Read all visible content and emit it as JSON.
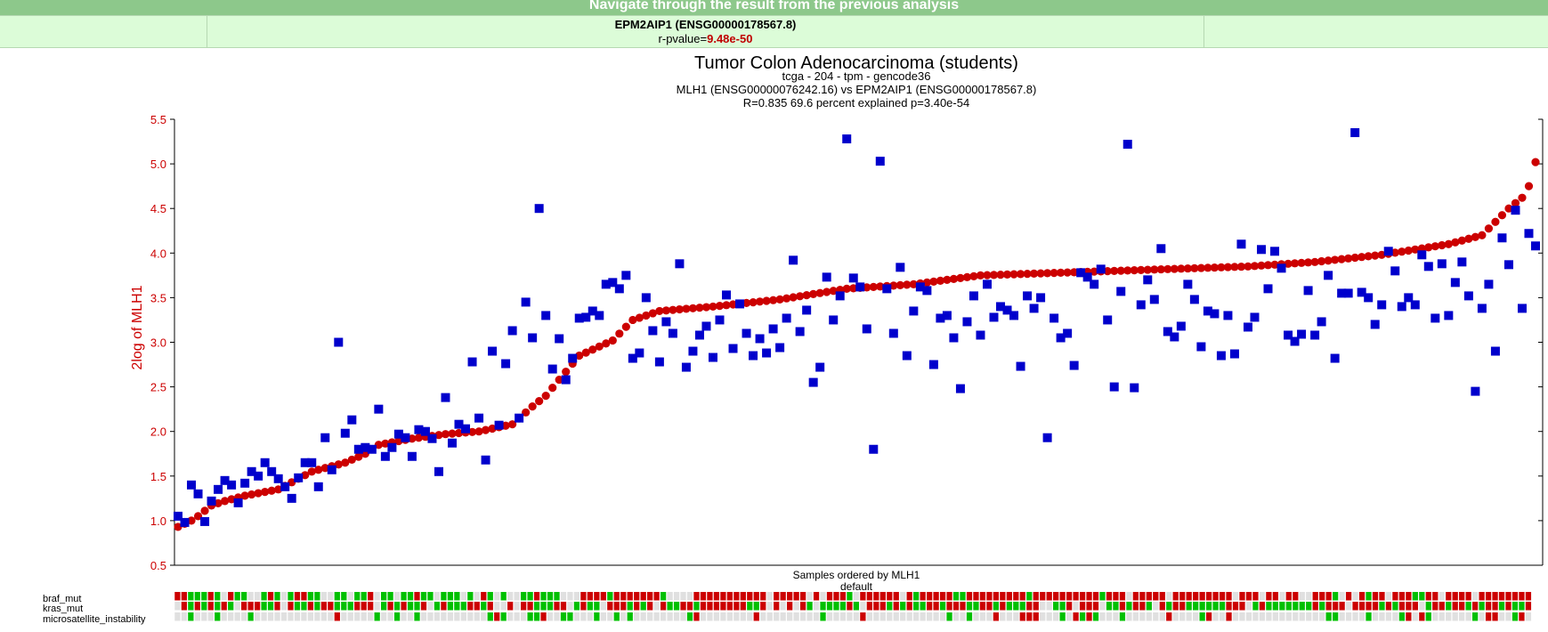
{
  "nav": {
    "text": "Navigate through the result from the previous analysis"
  },
  "info": {
    "gene": "EPM2AIP1 (ENSG00000178567.8)",
    "pvalue_label": "r-pvalue=",
    "pvalue": "9.48e-50"
  },
  "colors": {
    "nav_bg": "#8dc88b",
    "info_bg": "#dcfcd8",
    "series_red": "#cc0000",
    "series_blue": "#0000cc",
    "axis_red": "#cc0000",
    "track_green": "#00c000",
    "track_red": "#cc0000",
    "track_grey": "#e0e0e0"
  },
  "chart_data": {
    "type": "scatter",
    "title": "Tumor Colon Adenocarcinoma (students)",
    "subtitles": [
      "tcga - 204 - tpm - gencode36",
      "MLH1 (ENSG00000076242.16) vs EPM2AIP1 (ENSG00000178567.8)",
      "R=0.835 69.6 percent explained p=3.40e-54"
    ],
    "ylabel": "2log of MLH1",
    "xlabel": "Samples ordered by MLH1",
    "xlabel2": "default",
    "ylim": [
      0.5,
      5.5
    ],
    "yticks": [
      "0.5",
      "1.0",
      "1.5",
      "2.0",
      "2.5",
      "3.0",
      "3.5",
      "4.0",
      "4.5",
      "5.0",
      "5.5"
    ],
    "n_samples": 204,
    "series": [
      {
        "name": "MLH1",
        "marker": "circle",
        "color": "#cc0000",
        "anchors": [
          [
            0,
            0.93
          ],
          [
            2,
            1.0
          ],
          [
            3,
            1.05
          ],
          [
            5,
            1.17
          ],
          [
            7,
            1.22
          ],
          [
            10,
            1.28
          ],
          [
            15,
            1.35
          ],
          [
            20,
            1.55
          ],
          [
            25,
            1.65
          ],
          [
            28,
            1.75
          ],
          [
            30,
            1.85
          ],
          [
            35,
            1.92
          ],
          [
            40,
            1.97
          ],
          [
            45,
            2.0
          ],
          [
            50,
            2.08
          ],
          [
            53,
            2.28
          ],
          [
            55,
            2.4
          ],
          [
            57,
            2.58
          ],
          [
            60,
            2.85
          ],
          [
            65,
            3.02
          ],
          [
            68,
            3.25
          ],
          [
            72,
            3.35
          ],
          [
            80,
            3.4
          ],
          [
            90,
            3.48
          ],
          [
            100,
            3.6
          ],
          [
            110,
            3.65
          ],
          [
            120,
            3.75
          ],
          [
            140,
            3.8
          ],
          [
            160,
            3.85
          ],
          [
            170,
            3.9
          ],
          [
            180,
            3.98
          ],
          [
            190,
            4.1
          ],
          [
            195,
            4.2
          ],
          [
            197,
            4.35
          ],
          [
            199,
            4.5
          ],
          [
            201,
            4.62
          ],
          [
            202,
            4.75
          ],
          [
            203,
            5.02
          ]
        ]
      },
      {
        "name": "EPM2AIP1",
        "marker": "square",
        "color": "#0000cc",
        "values": [
          1.05,
          0.98,
          1.4,
          1.3,
          0.99,
          1.22,
          1.35,
          1.45,
          1.4,
          1.2,
          1.42,
          1.55,
          1.5,
          1.65,
          1.55,
          1.47,
          1.38,
          1.25,
          1.48,
          1.65,
          1.65,
          1.38,
          1.93,
          1.57,
          3.0,
          1.98,
          2.13,
          1.8,
          1.82,
          1.8,
          2.25,
          1.72,
          1.82,
          1.97,
          1.93,
          1.72,
          2.02,
          2.0,
          1.92,
          1.55,
          2.38,
          1.87,
          2.08,
          2.03,
          2.78,
          2.15,
          1.68,
          2.9,
          2.07,
          2.76,
          3.13,
          2.15,
          3.45,
          3.05,
          4.5,
          3.3,
          2.7,
          3.04,
          2.58,
          2.82,
          3.27,
          3.28,
          3.35,
          3.3,
          3.65,
          3.67,
          3.6,
          3.75,
          2.82,
          2.88,
          3.5,
          3.13,
          2.78,
          3.23,
          3.1,
          3.88,
          2.72,
          2.9,
          3.08,
          3.18,
          2.83,
          3.25,
          3.53,
          2.93,
          3.43,
          3.1,
          2.85,
          3.04,
          2.88,
          3.15,
          2.94,
          3.27,
          3.92,
          3.12,
          3.36,
          2.55,
          2.72,
          3.73,
          3.25,
          3.52,
          5.28,
          3.72,
          3.62,
          3.15,
          1.8,
          5.03,
          3.6,
          3.1,
          3.84,
          2.85,
          3.35,
          3.62,
          3.58,
          2.75,
          3.27,
          3.3,
          3.05,
          2.48,
          3.23,
          3.52,
          3.08,
          3.65,
          3.28,
          3.4,
          3.36,
          3.3,
          2.73,
          3.52,
          3.38,
          3.5,
          1.93,
          3.27,
          3.05,
          3.1,
          2.74,
          3.78,
          3.73,
          3.65,
          3.82,
          3.25,
          2.5,
          3.57,
          5.22,
          2.49,
          3.42,
          3.7,
          3.48,
          4.05,
          3.12,
          3.06,
          3.18,
          3.65,
          3.48,
          2.95,
          3.35,
          3.32,
          2.85,
          3.3,
          2.87,
          4.1,
          3.17,
          3.28,
          4.04,
          3.6,
          4.02,
          3.83,
          3.08,
          3.01,
          3.09,
          3.58,
          3.08,
          3.23,
          3.75,
          2.82,
          3.55,
          3.55,
          5.35,
          3.56,
          3.5,
          3.2,
          3.42,
          4.02,
          3.8,
          3.4,
          3.5,
          3.42,
          3.98,
          3.85,
          3.27,
          3.88,
          3.3,
          3.67,
          3.9,
          3.52,
          2.45,
          3.38,
          3.65,
          2.9,
          4.17,
          3.87,
          4.48,
          3.38,
          4.22,
          4.08
        ]
      }
    ],
    "tracks": [
      {
        "label": "braf_mut"
      },
      {
        "label": "kras_mut"
      },
      {
        "label": "microsatellite_instability"
      }
    ],
    "grid": false,
    "legend": "none"
  }
}
